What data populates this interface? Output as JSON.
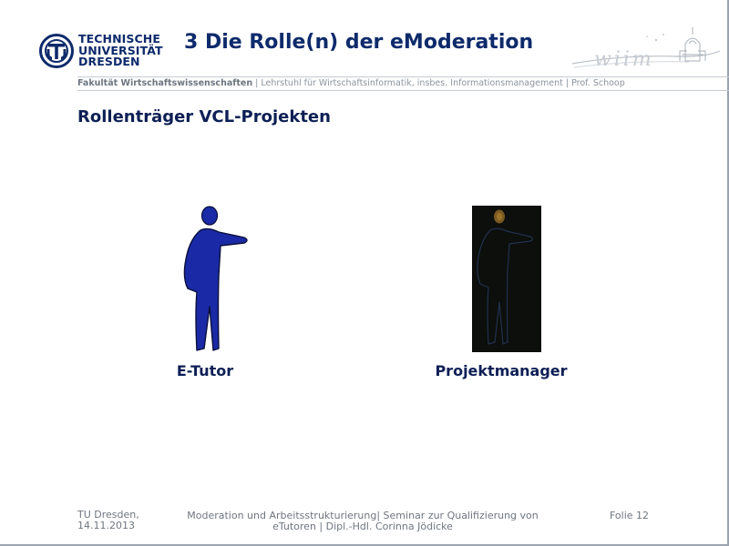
{
  "header": {
    "logo_lines": [
      "TECHNISCHE",
      "UNIVERSITÄT",
      "DRESDEN"
    ],
    "title": "3 Die Rolle(n) der eModeration",
    "brand_logo_text": "wiim",
    "affiliation_strong": "Fakultät Wirtschaftswissenschaften",
    "affiliation_rest": " | Lehrstuhl für Wirtschaftsinformatik, insbes. Informationsmanagement | Prof. Schoop"
  },
  "content": {
    "section_title": "Rollenträger VCL-Projekten",
    "roles": [
      {
        "label": "E-Tutor",
        "figure_icon": "person-pointing-blue-icon"
      },
      {
        "label": "Projektmanager",
        "figure_icon": "person-pointing-dark-icon"
      }
    ]
  },
  "footer": {
    "left_line1": "TU Dresden,",
    "left_line2": "14.11.2013",
    "center_line1": "Moderation und Arbeitsstrukturierung| Seminar zur Qualifizierung von",
    "center_line2": "eTutoren | Dipl.-Hdl. Corinna Jödicke",
    "right": "Folie 12"
  },
  "colors": {
    "title": "#0d2a6b",
    "figure_blue": "#1a2aa6",
    "figure_dark_bg": "#0c0f0b",
    "muted_text": "#8b939d"
  }
}
